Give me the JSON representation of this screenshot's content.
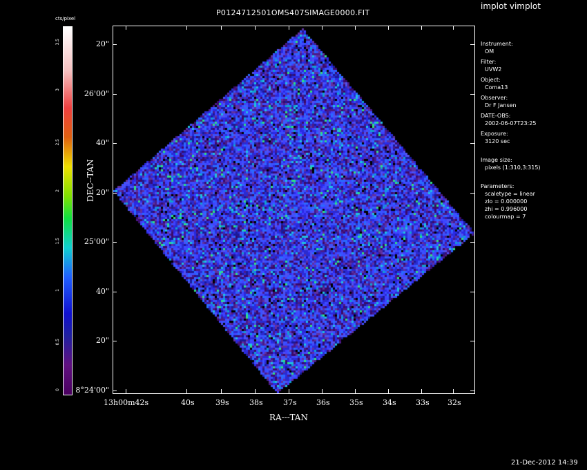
{
  "app": {
    "title": "implot vimplot",
    "timestamp": "21-Dec-2012 14:39"
  },
  "plot": {
    "title": "P0124712501OMS407SIMAGE0000.FIT"
  },
  "colorbar": {
    "title": "cts/pixel",
    "ticks": [
      "3.5",
      "3",
      "2.5",
      "2",
      "1.5",
      "1",
      "0.5",
      "0"
    ]
  },
  "axes": {
    "xlabel": "RA---TAN",
    "ylabel": "DEC--TAN",
    "xticks": [
      "13h00m42s",
      "40s",
      "39s",
      "38s",
      "37s",
      "36s",
      "35s",
      "34s",
      "33s",
      "32s"
    ],
    "yticks": [
      "20\"",
      "26'00\"",
      "40\"",
      "20\"",
      "25'00\"",
      "40\"",
      "20\"",
      "8°24'00\""
    ]
  },
  "info": {
    "instrument_label": "Instrument:",
    "instrument": "OM",
    "filter_label": "Filter:",
    "filter": "UVW2",
    "object_label": "Object:",
    "object": "Coma13",
    "observer_label": "Observer:",
    "observer": "Dr F Jansen",
    "date_label": "DATE-OBS:",
    "date": "2002-06-07T23:25",
    "exposure_label": "Exposure:",
    "exposure": "3120 sec",
    "imgsize_label": "Image size:",
    "imgsize": "pixels (1:310,3:315)",
    "params_label": "Parameters:",
    "p1": "scaletype = linear",
    "p2": "zlo = 0.000000",
    "p3": "zhi = 0.996000",
    "p4": "colourmap =   7"
  }
}
